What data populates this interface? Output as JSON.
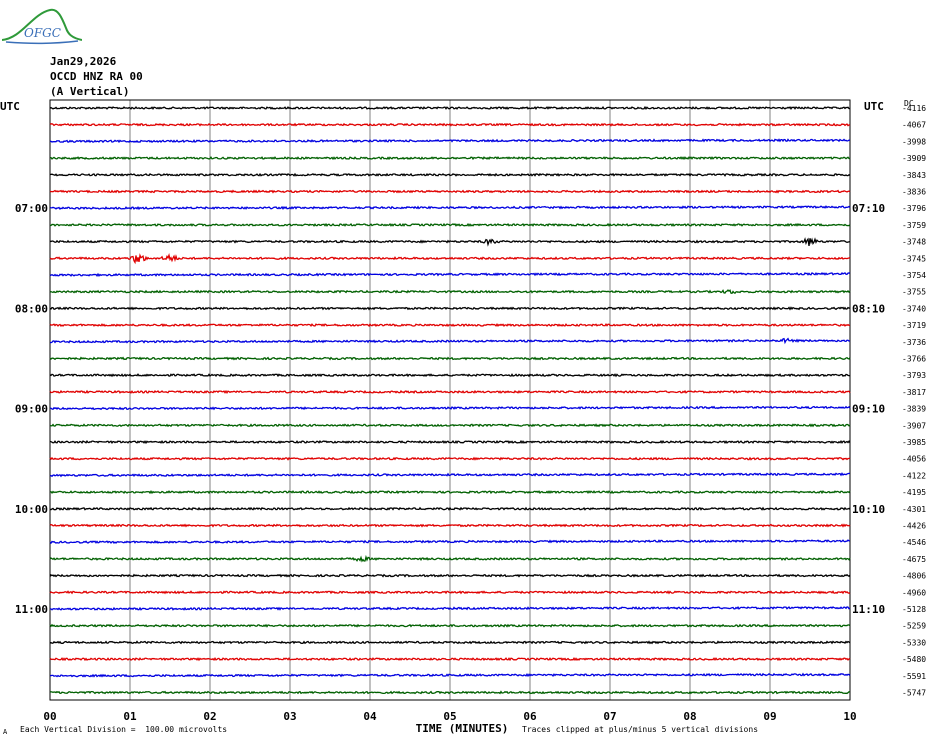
{
  "header": {
    "logo_text": "OFGC",
    "date": "Jan29,2026",
    "station": "OCCD HNZ RA 00",
    "component": "(A Vertical)"
  },
  "left_axis_label": "UTC",
  "right_axis_label": "UTC",
  "dc_label": "DC",
  "left_time_labels": [
    "07:00",
    "08:00",
    "09:00",
    "10:00",
    "11:00"
  ],
  "right_time_labels": [
    "07:10",
    "08:10",
    "09:10",
    "10:10",
    "11:10"
  ],
  "footer": {
    "scale_note": "Each Vertical Division =  100.00 microvolts",
    "clip_note": "Traces clipped at plus/minus 5 vertical divisions",
    "corner_mark": "A"
  },
  "colors": {
    "black": "#000000",
    "red": "#e00000",
    "blue": "#0000e0",
    "green": "#006000",
    "grid": "#808080"
  },
  "chart_data": {
    "type": "line",
    "title": "OCCD HNZ RA 00 (A Vertical)",
    "xlabel": "TIME (MINUTES)",
    "ylabel": "UTC",
    "xlim": [
      0,
      10
    ],
    "x_ticks": [
      "00",
      "01",
      "02",
      "03",
      "04",
      "05",
      "06",
      "07",
      "08",
      "09",
      "10"
    ],
    "trace_color_cycle": [
      "black",
      "red",
      "blue",
      "green"
    ],
    "rows_per_hour": 6,
    "first_hour_label_row": 6,
    "dc_offsets": [
      -4116,
      -4067,
      -3998,
      -3909,
      -3843,
      -3836,
      -3796,
      -3759,
      -3748,
      -3745,
      -3754,
      -3755,
      -3740,
      -3719,
      -3736,
      -3766,
      -3793,
      -3817,
      -3839,
      -3907,
      -3985,
      -4056,
      -4122,
      -4195,
      -4301,
      -4426,
      -4546,
      -4675,
      -4806,
      -4960,
      -5128,
      -5259,
      -5330,
      -5480,
      -5591,
      -5747
    ],
    "events": [
      {
        "row": 8,
        "minute": 5.5,
        "amplitude": 1.2
      },
      {
        "row": 8,
        "minute": 9.5,
        "amplitude": 2.0
      },
      {
        "row": 9,
        "minute": 1.1,
        "amplitude": 2.5
      },
      {
        "row": 9,
        "minute": 1.5,
        "amplitude": 1.8
      },
      {
        "row": 11,
        "minute": 8.5,
        "amplitude": 0.8
      },
      {
        "row": 14,
        "minute": 9.2,
        "amplitude": 0.8
      },
      {
        "row": 27,
        "minute": 3.9,
        "amplitude": 1.0
      }
    ]
  }
}
